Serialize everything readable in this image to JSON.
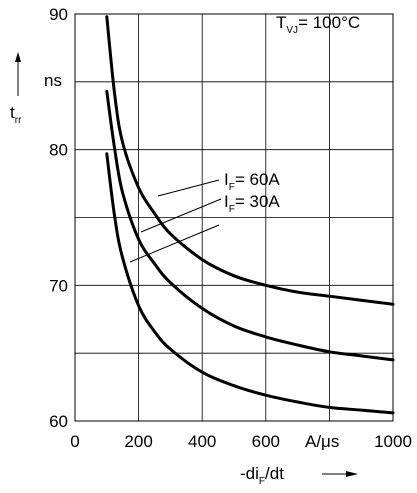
{
  "chart_data": {
    "type": "line",
    "title": "",
    "xlabel": "-di",
    "xlabel_sub": "F",
    "xlabel_tail": "/dt",
    "x_unit": "A/μs",
    "ylabel": "t",
    "ylabel_sub": "rr",
    "y_unit": "ns",
    "xlim": [
      0,
      1000
    ],
    "ylim": [
      60,
      90
    ],
    "x_ticks": [
      0,
      200,
      400,
      600,
      1000
    ],
    "x_tick_labels": [
      "0",
      "200",
      "400",
      "600",
      "1000"
    ],
    "y_ticks": [
      60,
      70,
      80,
      90
    ],
    "y_tick_labels": [
      "60",
      "70",
      "80",
      "90"
    ],
    "x_grid": [
      0,
      200,
      400,
      600,
      800,
      1000
    ],
    "y_grid": [
      60,
      65,
      70,
      75,
      80,
      85,
      90
    ],
    "grid": true,
    "annotation": {
      "prefix": "T",
      "sub": "VJ",
      "suffix": "= 100°C"
    },
    "series": [
      {
        "label_prefix": "I",
        "label_sub": "F",
        "label_suffix": "= 60A",
        "x": [
          100,
          125,
          150,
          200,
          250,
          300,
          400,
          500,
          600,
          700,
          800,
          900,
          1000
        ],
        "y": [
          89.8,
          84.0,
          80.5,
          77.2,
          75.3,
          73.8,
          71.9,
          70.7,
          70.0,
          69.5,
          69.2,
          68.9,
          68.6
        ]
      },
      {
        "label_prefix": "I",
        "label_sub": "F",
        "label_suffix": "= 30A",
        "x": [
          100,
          125,
          150,
          200,
          250,
          300,
          400,
          500,
          600,
          700,
          800,
          900,
          1000
        ],
        "y": [
          84.3,
          80.0,
          76.8,
          73.4,
          71.6,
          70.2,
          68.3,
          67.0,
          66.2,
          65.6,
          65.1,
          64.8,
          64.5
        ]
      },
      {
        "x": [
          100,
          125,
          150,
          200,
          250,
          300,
          400,
          500,
          600,
          700,
          800,
          900,
          1000
        ],
        "y": [
          79.7,
          75.0,
          72.0,
          68.5,
          66.6,
          65.3,
          63.6,
          62.6,
          61.9,
          61.4,
          61.0,
          60.8,
          60.6
        ]
      }
    ]
  }
}
